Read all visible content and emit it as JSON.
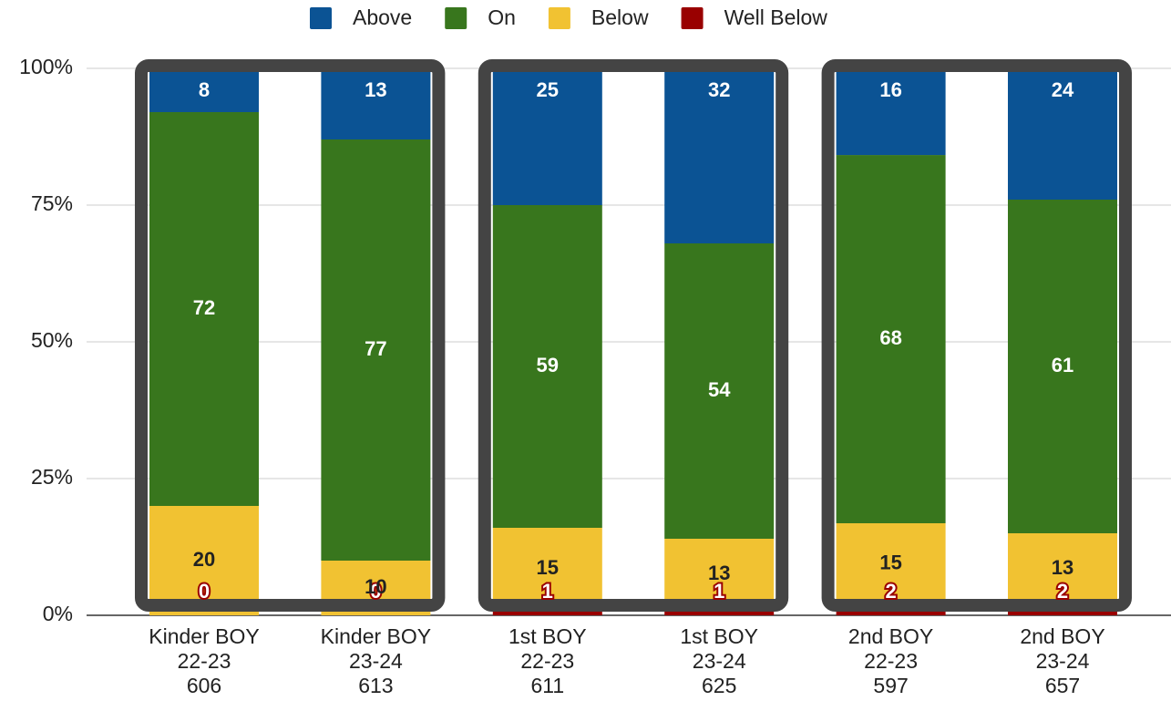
{
  "chart_data": {
    "type": "bar",
    "stacking": "percent",
    "categories": [
      [
        "Kinder BOY",
        "22-23",
        "606"
      ],
      [
        "Kinder BOY",
        "23-24",
        "613"
      ],
      [
        "1st BOY",
        "22-23",
        "611"
      ],
      [
        "1st BOY",
        "23-24",
        "625"
      ],
      [
        "2nd BOY",
        "22-23",
        "597"
      ],
      [
        "2nd BOY",
        "23-24",
        "657"
      ]
    ],
    "series": [
      {
        "name": "Above",
        "color": "#0b5394",
        "values": [
          8,
          13,
          25,
          32,
          16,
          24
        ]
      },
      {
        "name": "On",
        "color": "#38761d",
        "values": [
          72,
          77,
          59,
          54,
          68,
          61
        ]
      },
      {
        "name": "Below",
        "color": "#f1c232",
        "values": [
          20,
          10,
          15,
          13,
          15,
          13
        ]
      },
      {
        "name": "Well Below",
        "color": "#990000",
        "values": [
          0,
          0,
          1,
          1,
          2,
          2
        ]
      }
    ],
    "ylim": [
      0,
      100
    ],
    "yticks": [
      {
        "value": 0,
        "label": "0%"
      },
      {
        "value": 25,
        "label": "25%"
      },
      {
        "value": 50,
        "label": "50%"
      },
      {
        "value": 75,
        "label": "75%"
      },
      {
        "value": 100,
        "label": "100%"
      }
    ],
    "grid": true,
    "legend": "top"
  }
}
